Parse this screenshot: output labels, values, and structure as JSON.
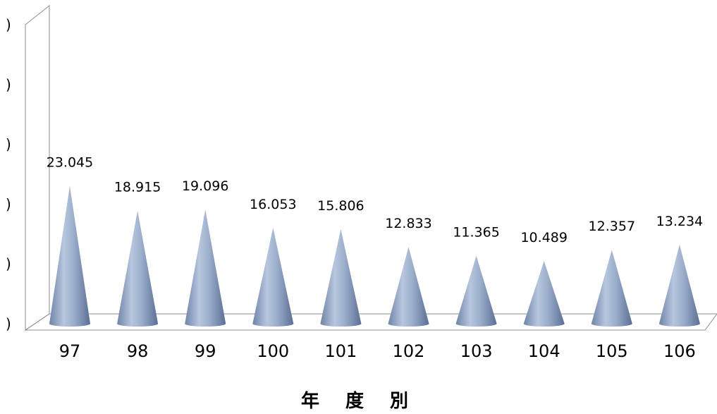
{
  "chart_data": {
    "type": "bar",
    "shape": "cone",
    "categories": [
      "97",
      "98",
      "99",
      "100",
      "101",
      "102",
      "103",
      "104",
      "105",
      "106"
    ],
    "values": [
      23.045,
      18.915,
      19.096,
      16.053,
      15.806,
      12.833,
      11.365,
      10.489,
      12.357,
      13.234
    ],
    "data_labels": [
      "23.045",
      "18.915",
      "19.096",
      "16.053",
      "15.806",
      "12.833",
      "11.365",
      "10.489",
      "12.357",
      "13.234"
    ],
    "xlabel": "年 度 別",
    "ylim": [
      0,
      50
    ],
    "ytick_values": [
      0,
      10,
      20,
      30,
      40,
      50
    ],
    "ytick_labels": [
      ")",
      ")",
      ")",
      ")",
      ")",
      ")"
    ],
    "grid": false,
    "legend": "none",
    "colors": {
      "cone": "#9aaecb",
      "cone_dark": "#5a6f93",
      "cone_light": "#c8d5e8",
      "axis": "#8c8c8c"
    }
  }
}
